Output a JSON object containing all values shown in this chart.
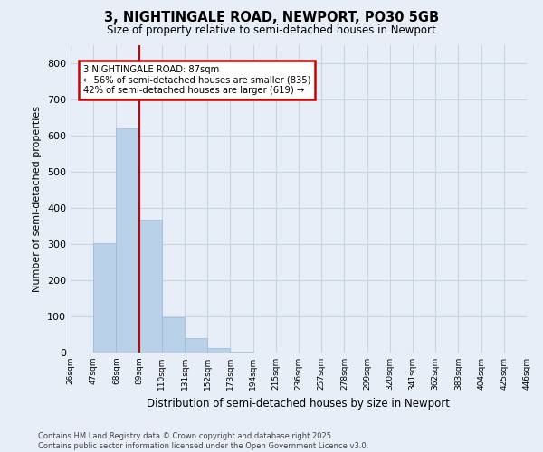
{
  "title": "3, NIGHTINGALE ROAD, NEWPORT, PO30 5GB",
  "subtitle": "Size of property relative to semi-detached houses in Newport",
  "xlabel": "Distribution of semi-detached houses by size in Newport",
  "ylabel": "Number of semi-detached properties",
  "bar_values": [
    0,
    302,
    619,
    367,
    97,
    40,
    13,
    3,
    0,
    0,
    0,
    0,
    0,
    0,
    0,
    0,
    0,
    0,
    0,
    0
  ],
  "bin_labels": [
    "26sqm",
    "47sqm",
    "68sqm",
    "89sqm",
    "110sqm",
    "131sqm",
    "152sqm",
    "173sqm",
    "194sqm",
    "215sqm",
    "236sqm",
    "257sqm",
    "278sqm",
    "299sqm",
    "320sqm",
    "341sqm",
    "362sqm",
    "383sqm",
    "404sqm",
    "425sqm",
    "446sqm"
  ],
  "bar_color": "#b8d0e8",
  "bar_edge_color": "#9ab8d8",
  "grid_color": "#c8d4e4",
  "background_color": "#e8eef8",
  "vline_x": 3,
  "vline_color": "#cc0000",
  "annotation_title": "3 NIGHTINGALE ROAD: 87sqm",
  "annotation_line1": "← 56% of semi-detached houses are smaller (835)",
  "annotation_line2": "42% of semi-detached houses are larger (619) →",
  "annotation_box_color": "#ffffff",
  "annotation_box_edge": "#cc0000",
  "ylim": [
    0,
    850
  ],
  "yticks": [
    0,
    100,
    200,
    300,
    400,
    500,
    600,
    700,
    800
  ],
  "footer1": "Contains HM Land Registry data © Crown copyright and database right 2025.",
  "footer2": "Contains public sector information licensed under the Open Government Licence v3.0."
}
